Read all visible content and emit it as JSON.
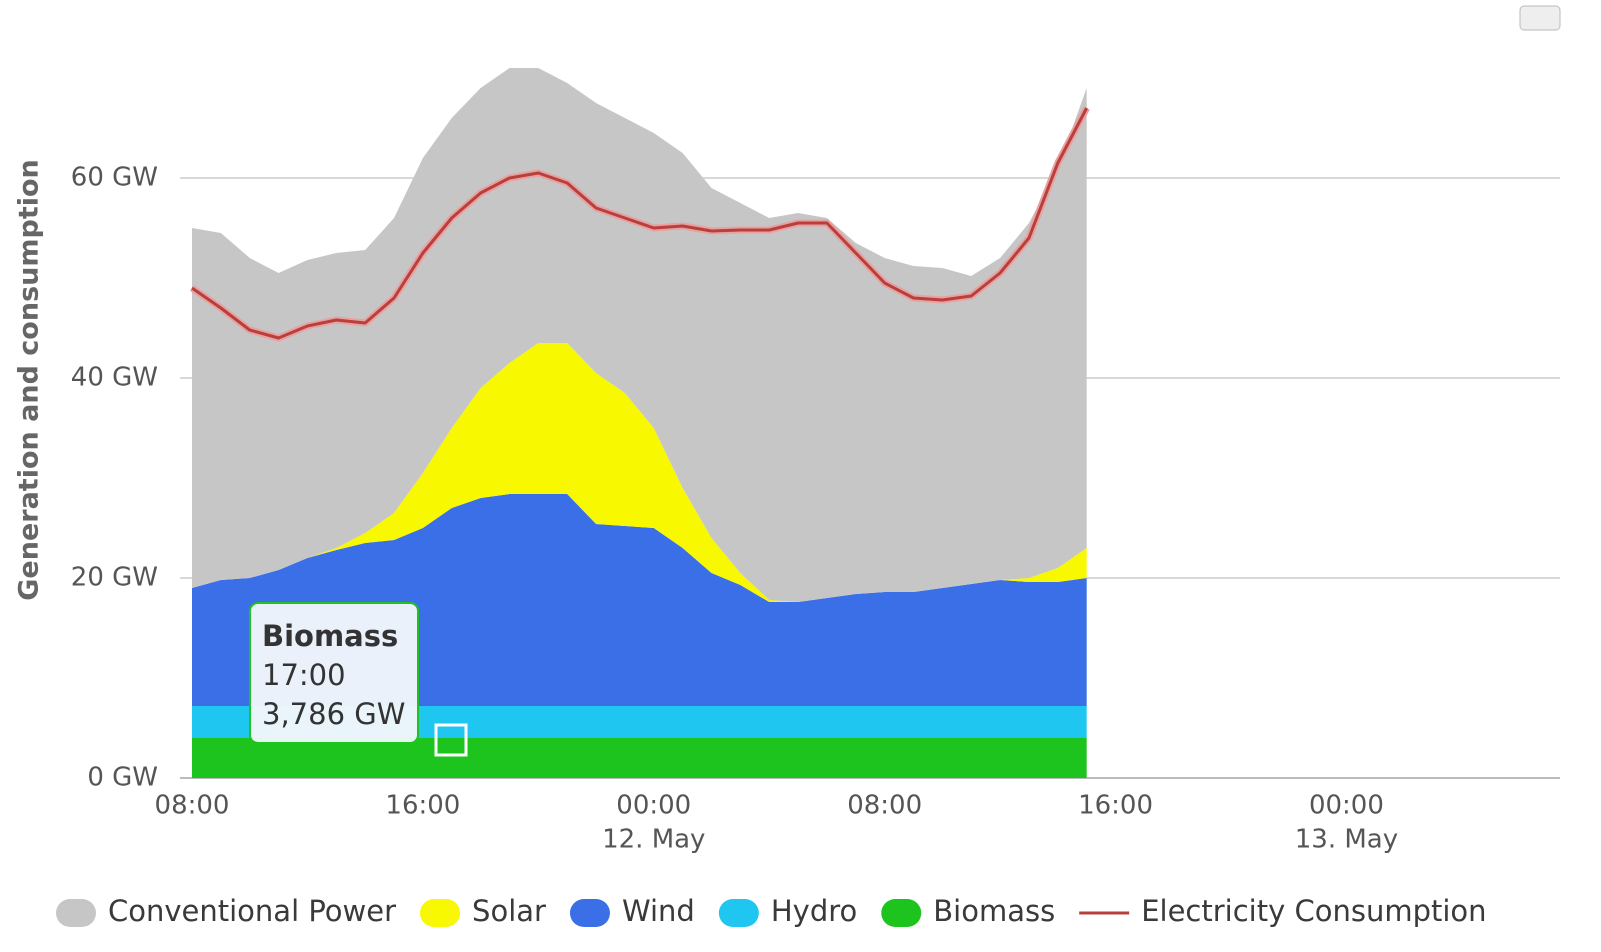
{
  "chart_data": {
    "type": "area",
    "stacked": true,
    "y_axis_label": "Generation and consumption",
    "categories": [
      "08:00",
      null,
      null,
      null,
      null,
      null,
      null,
      null,
      "16:00",
      null,
      null,
      null,
      null,
      null,
      null,
      null,
      "00:00",
      null,
      null,
      null,
      null,
      null,
      null,
      null,
      "08:00",
      null,
      null,
      null,
      null,
      null,
      null,
      null,
      "16:00",
      null,
      null,
      null,
      null,
      null,
      null,
      null,
      "00:00",
      null,
      null,
      null,
      null,
      null,
      null,
      null
    ],
    "day_labels": [
      null,
      null,
      null,
      null,
      null,
      null,
      null,
      null,
      null,
      null,
      null,
      null,
      null,
      null,
      null,
      null,
      "12. May",
      null,
      null,
      null,
      null,
      null,
      null,
      null,
      null,
      null,
      null,
      null,
      null,
      null,
      null,
      null,
      null,
      null,
      null,
      null,
      null,
      null,
      null,
      null,
      "13. May",
      null,
      null,
      null,
      null,
      null,
      null,
      null
    ],
    "series": [
      {
        "name": "Conventional Power",
        "type": "area",
        "color": "#c6c6c6",
        "values": [
          36,
          34.7,
          32,
          29.7,
          29.8,
          29.5,
          28.3,
          29.5,
          31.5,
          31,
          30,
          29.5,
          27.5,
          26,
          27,
          27.5,
          29.5,
          33.5,
          35,
          37,
          38.2,
          38.9,
          38,
          35.1,
          33.4,
          32.6,
          32,
          30.8,
          32.2,
          35.5,
          40,
          46,
          null,
          null,
          null,
          null,
          null,
          null,
          null,
          null,
          null,
          null,
          null,
          null,
          null,
          null,
          null,
          null
        ]
      },
      {
        "name": "Solar",
        "type": "area",
        "color": "#f8f800",
        "values": [
          0,
          0,
          0,
          0,
          0,
          0.2,
          1,
          2.7,
          5.5,
          8,
          11,
          13.1,
          15.1,
          15.1,
          15.1,
          13.3,
          10,
          6,
          3.5,
          1.2,
          0.2,
          0,
          0,
          0,
          0,
          0,
          0,
          0,
          0,
          0.4,
          1.4,
          3,
          null,
          null,
          null,
          null,
          null,
          null,
          null,
          null,
          null,
          null,
          null,
          null,
          null,
          null,
          null,
          null
        ]
      },
      {
        "name": "Wind",
        "type": "area",
        "color": "#3a6fe8",
        "values": [
          11.8,
          12.6,
          12.8,
          13.6,
          14.8,
          15.6,
          16.3,
          16.6,
          17.8,
          19.8,
          20.8,
          21.2,
          21.2,
          21.2,
          18.2,
          18,
          17.8,
          15.8,
          13.3,
          12.1,
          10.4,
          10.4,
          10.8,
          11.2,
          11.4,
          11.4,
          11.8,
          12.2,
          12.6,
          12.4,
          12.4,
          12.8,
          null,
          null,
          null,
          null,
          null,
          null,
          null,
          null,
          null,
          null,
          null,
          null,
          null,
          null,
          null,
          null
        ]
      },
      {
        "name": "Hydro",
        "type": "area",
        "color": "#1fc6f0",
        "values": [
          3.2,
          3.2,
          3.2,
          3.2,
          3.2,
          3.2,
          3.2,
          3.2,
          3.2,
          3.2,
          3.2,
          3.2,
          3.2,
          3.2,
          3.2,
          3.2,
          3.2,
          3.2,
          3.2,
          3.2,
          3.2,
          3.2,
          3.2,
          3.2,
          3.2,
          3.2,
          3.2,
          3.2,
          3.2,
          3.2,
          3.2,
          3.2,
          null,
          null,
          null,
          null,
          null,
          null,
          null,
          null,
          null,
          null,
          null,
          null,
          null,
          null,
          null,
          null
        ]
      },
      {
        "name": "Biomass",
        "type": "area",
        "color": "#1ec41e",
        "values": [
          4,
          4,
          4,
          4,
          4,
          4,
          4,
          4,
          4,
          4,
          4,
          4,
          4,
          4,
          4,
          4,
          4,
          4,
          4,
          4,
          4,
          4,
          4,
          4,
          4,
          4,
          4,
          4,
          4,
          4,
          4,
          4,
          null,
          null,
          null,
          null,
          null,
          null,
          null,
          null,
          null,
          null,
          null,
          null,
          null,
          null,
          null,
          null
        ]
      },
      {
        "name": "Electricity Consumption",
        "type": "line",
        "color": "#b8403c",
        "values": [
          49,
          47,
          44.8,
          44,
          45.2,
          45.8,
          45.5,
          48,
          52.5,
          56,
          58.5,
          60,
          60.5,
          59.5,
          57,
          56,
          55,
          55.2,
          54.7,
          54.8,
          54.8,
          55.5,
          55.5,
          52.5,
          49.5,
          48,
          47.8,
          48.2,
          50.5,
          54,
          61.5,
          67,
          null,
          null,
          null,
          null,
          null,
          null,
          null,
          null,
          null,
          null,
          null,
          null,
          null,
          null,
          null,
          null
        ]
      }
    ],
    "ylim": [
      0,
      72
    ],
    "yticks": [
      {
        "value": 0,
        "label": "0 GW"
      },
      {
        "value": 20,
        "label": "20 GW"
      },
      {
        "value": 40,
        "label": "40 GW"
      },
      {
        "value": 60,
        "label": "60 GW"
      }
    ],
    "grid": true,
    "legend": "bottom",
    "tooltip": {
      "title": "Biomass",
      "time": "17:00",
      "value": "3,786 GW"
    }
  }
}
